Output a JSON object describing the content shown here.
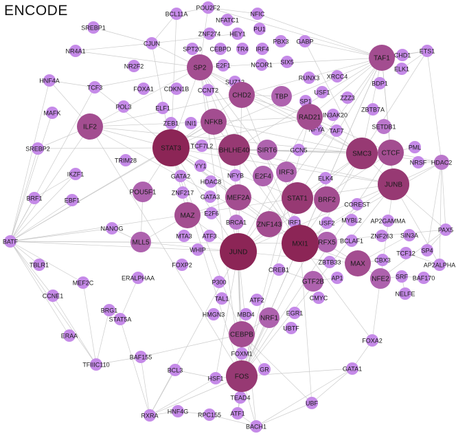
{
  "title": "ENCODE",
  "colors": {
    "edge": "#c2c2c2",
    "node_light": "#c58ae8",
    "node_dark": "#8c2556",
    "label": "#1a1a1a"
  },
  "nodes": [
    {
      "id": "POU2F2",
      "label": "POU2F2",
      "size": 0
    },
    {
      "id": "BCL11A",
      "label": "BCL11A",
      "size": 0
    },
    {
      "id": "NFATC1",
      "label": "NFATC1",
      "size": 0
    },
    {
      "id": "NFIC",
      "label": "NFIC",
      "size": 0
    },
    {
      "id": "SREBP1",
      "label": "SREBP1",
      "size": 0
    },
    {
      "id": "CJUN",
      "label": "CJUN",
      "size": 0
    },
    {
      "id": "ZNF274",
      "label": "ZNF274",
      "size": 0
    },
    {
      "id": "HEY1",
      "label": "HEY1",
      "size": 0
    },
    {
      "id": "PU1",
      "label": "PU1",
      "size": 0
    },
    {
      "id": "PBX3",
      "label": "PBX3",
      "size": 0
    },
    {
      "id": "GABP",
      "label": "GABP",
      "size": 0
    },
    {
      "id": "NR4A1",
      "label": "NR4A1",
      "size": 0
    },
    {
      "id": "SPT20",
      "label": "SPT20",
      "size": 0
    },
    {
      "id": "CEBPD",
      "label": "CEBPD",
      "size": 0
    },
    {
      "id": "TR4",
      "label": "TR4",
      "size": 0
    },
    {
      "id": "IRF4",
      "label": "IRF4",
      "size": 0
    },
    {
      "id": "TAF1",
      "label": "TAF1",
      "size": 3
    },
    {
      "id": "CHD1",
      "label": "CHD1",
      "size": 0
    },
    {
      "id": "ETS1",
      "label": "ETS1",
      "size": 0
    },
    {
      "id": "NR2F2",
      "label": "NR2F2",
      "size": 0
    },
    {
      "id": "SP2",
      "label": "SP2",
      "size": 3
    },
    {
      "id": "E2F1",
      "label": "E2F1",
      "size": 0
    },
    {
      "id": "NCOR1",
      "label": "NCOR1",
      "size": 0
    },
    {
      "id": "SIX5",
      "label": "SIX5",
      "size": 0
    },
    {
      "id": "ELK1",
      "label": "ELK1",
      "size": 0
    },
    {
      "id": "HNF4A",
      "label": "HNF4A",
      "size": 0
    },
    {
      "id": "TCF3",
      "label": "TCF3",
      "size": 0
    },
    {
      "id": "FOXA1",
      "label": "FOXA1",
      "size": 0
    },
    {
      "id": "CDKN1B",
      "label": "CDKN1B",
      "size": 0
    },
    {
      "id": "CCNT2",
      "label": "CCNT2",
      "size": 0
    },
    {
      "id": "SUZ12",
      "label": "SUZ12",
      "size": 0
    },
    {
      "id": "RUNX3",
      "label": "RUNX3",
      "size": 0
    },
    {
      "id": "XRCC4",
      "label": "XRCC4",
      "size": 0
    },
    {
      "id": "BDP1",
      "label": "BDP1",
      "size": 0
    },
    {
      "id": "CHD2",
      "label": "CHD2",
      "size": 3
    },
    {
      "id": "TBP",
      "label": "TBP",
      "size": 2
    },
    {
      "id": "SP1",
      "label": "SP1",
      "size": 0
    },
    {
      "id": "USF1",
      "label": "USF1",
      "size": 0
    },
    {
      "id": "ZZZ3",
      "label": "ZZZ3",
      "size": 0
    },
    {
      "id": "MAFK",
      "label": "MAFK",
      "size": 0
    },
    {
      "id": "POL3",
      "label": "POL3",
      "size": 0
    },
    {
      "id": "ELF1",
      "label": "ELF1",
      "size": 0
    },
    {
      "id": "SIN3AK20",
      "label": "SIN3AK20",
      "size": 0
    },
    {
      "id": "ZBTB7A",
      "label": "ZBTB7A",
      "size": 0
    },
    {
      "id": "ILF2",
      "label": "ILF2",
      "size": 3
    },
    {
      "id": "NFKB",
      "label": "NFKB",
      "size": 3
    },
    {
      "id": "RAD21",
      "label": "RAD21",
      "size": 3
    },
    {
      "id": "NFYA",
      "label": "NFYA",
      "size": 0
    },
    {
      "id": "TAF7",
      "label": "TAF7",
      "size": 0
    },
    {
      "id": "SETDB1",
      "label": "SETDB1",
      "size": 1
    },
    {
      "id": "ZEB1",
      "label": "ZEB1",
      "size": 0
    },
    {
      "id": "INI1",
      "label": "INI1",
      "size": 0
    },
    {
      "id": "SREBP2",
      "label": "SREBP2",
      "size": 0
    },
    {
      "id": "STAT3",
      "label": "STAT3",
      "size": 5
    },
    {
      "id": "TCF7L2",
      "label": "TCF7L2",
      "size": 0
    },
    {
      "id": "BHLHE40",
      "label": "BHLHE40",
      "size": 4
    },
    {
      "id": "SIRT6",
      "label": "SIRT6",
      "size": 2
    },
    {
      "id": "GCN5",
      "label": "GCN5",
      "size": 0
    },
    {
      "id": "SMC3",
      "label": "SMC3",
      "size": 4
    },
    {
      "id": "CTCF",
      "label": "CTCF",
      "size": 3
    },
    {
      "id": "PML",
      "label": "PML",
      "size": 0
    },
    {
      "id": "TRIM28",
      "label": "TRIM28",
      "size": 0
    },
    {
      "id": "NRSF",
      "label": "NRSF",
      "size": 0
    },
    {
      "id": "HDAC2",
      "label": "HDAC2",
      "size": 1
    },
    {
      "id": "IKZF1",
      "label": "IKZF1",
      "size": 0
    },
    {
      "id": "YY1",
      "label": "YY1",
      "size": 0
    },
    {
      "id": "GATA2",
      "label": "GATA2",
      "size": 0
    },
    {
      "id": "NFYB",
      "label": "NFYB",
      "size": 0
    },
    {
      "id": "E2F4",
      "label": "E2F4",
      "size": 2
    },
    {
      "id": "IRF3",
      "label": "IRF3",
      "size": 2
    },
    {
      "id": "ELK4",
      "label": "ELK4",
      "size": 0
    },
    {
      "id": "JUNB",
      "label": "JUNB",
      "size": 4
    },
    {
      "id": "BRF1",
      "label": "BRF1",
      "size": 0
    },
    {
      "id": "POU5F1",
      "label": "POU5F1",
      "size": 2
    },
    {
      "id": "ZNF217",
      "label": "ZNF217",
      "size": 0
    },
    {
      "id": "HDAC8",
      "label": "HDAC8",
      "size": 0
    },
    {
      "id": "MEF2A",
      "label": "MEF2A",
      "size": 3
    },
    {
      "id": "STAT1",
      "label": "STAT1",
      "size": 4
    },
    {
      "id": "BRF2",
      "label": "BRF2",
      "size": 3
    },
    {
      "id": "GATA3",
      "label": "GATA3",
      "size": 0
    },
    {
      "id": "EBF1",
      "label": "EBF1",
      "size": 0
    },
    {
      "id": "COREST",
      "label": "COREST",
      "size": 0
    },
    {
      "id": "MAZ",
      "label": "MAZ",
      "size": 3
    },
    {
      "id": "E2F6",
      "label": "E2F6",
      "size": 0
    },
    {
      "id": "MYBL2",
      "label": "MYBL2",
      "size": 0
    },
    {
      "id": "AP2GAMMA",
      "label": "AP2GAMMA",
      "size": 0
    },
    {
      "id": "BRCA1",
      "label": "BRCA1",
      "size": 1
    },
    {
      "id": "ZNF143",
      "label": "ZNF143",
      "size": 3
    },
    {
      "id": "IRF1",
      "label": "IRF1",
      "size": 0
    },
    {
      "id": "USF2",
      "label": "USF2",
      "size": 0
    },
    {
      "id": "SIN3A",
      "label": "SIN3A",
      "size": 0
    },
    {
      "id": "PAX5",
      "label": "PAX5",
      "size": 0
    },
    {
      "id": "BATF",
      "label": "BATF",
      "size": 0
    },
    {
      "id": "NANOG",
      "label": "NANOG",
      "size": 0
    },
    {
      "id": "MLL5",
      "label": "MLL5",
      "size": 2
    },
    {
      "id": "MTA3",
      "label": "MTA3",
      "size": 0
    },
    {
      "id": "ATF3",
      "label": "ATF3",
      "size": 0
    },
    {
      "id": "MXI1",
      "label": "MXI1",
      "size": 5
    },
    {
      "id": "RFX5",
      "label": "RFX5",
      "size": 2
    },
    {
      "id": "BCLAF1",
      "label": "BCLAF1",
      "size": 0
    },
    {
      "id": "ZNF263",
      "label": "ZNF263",
      "size": 0
    },
    {
      "id": "TCF12",
      "label": "TCF12",
      "size": 0
    },
    {
      "id": "SP4",
      "label": "SP4",
      "size": 0
    },
    {
      "id": "JUND",
      "label": "JUND",
      "size": 5
    },
    {
      "id": "WHIP",
      "label": "WHIP",
      "size": 0
    },
    {
      "id": "CBX3",
      "label": "CBX3",
      "size": 0
    },
    {
      "id": "AP2ALPHA",
      "label": "AP2ALPHA",
      "size": 0
    },
    {
      "id": "TBLR1",
      "label": "TBLR1",
      "size": 0
    },
    {
      "id": "FOXP2",
      "label": "FOXP2",
      "size": 0
    },
    {
      "id": "CREB1",
      "label": "CREB1",
      "size": 0
    },
    {
      "id": "ZBTB33",
      "label": "ZBTB33",
      "size": 0
    },
    {
      "id": "MAX",
      "label": "MAX",
      "size": 3
    },
    {
      "id": "BAF170",
      "label": "BAF170",
      "size": 0
    },
    {
      "id": "MEF2C",
      "label": "MEF2C",
      "size": 0
    },
    {
      "id": "ERALPHAA",
      "label": "ERALPHAA",
      "size": 0
    },
    {
      "id": "P300",
      "label": "P300",
      "size": 0
    },
    {
      "id": "GTF2B",
      "label": "GTF2B",
      "size": 2
    },
    {
      "id": "AP1",
      "label": "AP1",
      "size": 0
    },
    {
      "id": "NFE2",
      "label": "NFE2",
      "size": 2
    },
    {
      "id": "SRF",
      "label": "SRF",
      "size": 0
    },
    {
      "id": "CCNE1",
      "label": "CCNE1",
      "size": 0
    },
    {
      "id": "NELFE",
      "label": "NELFE",
      "size": 0
    },
    {
      "id": "TAL1",
      "label": "TAL1",
      "size": 0
    },
    {
      "id": "BRG1",
      "label": "BRG1",
      "size": 0
    },
    {
      "id": "ATF2",
      "label": "ATF2",
      "size": 0
    },
    {
      "id": "CMYC",
      "label": "CMYC",
      "size": 0
    },
    {
      "id": "HMGN3",
      "label": "HMGN3",
      "size": 0
    },
    {
      "id": "MBD4",
      "label": "MBD4",
      "size": 0
    },
    {
      "id": "NRF1",
      "label": "NRF1",
      "size": 2
    },
    {
      "id": "EGR1",
      "label": "EGR1",
      "size": 0
    },
    {
      "id": "STAT5A",
      "label": "STAT5A",
      "size": 0
    },
    {
      "id": "UBTF",
      "label": "UBTF",
      "size": 0
    },
    {
      "id": "ERAA",
      "label": "ERAA",
      "size": 0
    },
    {
      "id": "CEBPB",
      "label": "CEBPB",
      "size": 3
    },
    {
      "id": "FOXA2",
      "label": "FOXA2",
      "size": 0
    },
    {
      "id": "BAF155",
      "label": "BAF155",
      "size": 0
    },
    {
      "id": "FOXM1",
      "label": "FOXM1",
      "size": 0
    },
    {
      "id": "TFIIIC110",
      "label": "TFIIIC110",
      "size": 0
    },
    {
      "id": "GATA1",
      "label": "GATA1",
      "size": 0
    },
    {
      "id": "BCL3",
      "label": "BCL3",
      "size": 0
    },
    {
      "id": "GR",
      "label": "GR",
      "size": 0
    },
    {
      "id": "HSF1",
      "label": "HSF1",
      "size": 0
    },
    {
      "id": "FOS",
      "label": "FOS",
      "size": 4
    },
    {
      "id": "TEAD4",
      "label": "TEAD4",
      "size": 0
    },
    {
      "id": "UBF",
      "label": "UBF",
      "size": 0
    },
    {
      "id": "HNF4G",
      "label": "HNF4G",
      "size": 0
    },
    {
      "id": "RXRA",
      "label": "RXRA",
      "size": 0
    },
    {
      "id": "RPC155",
      "label": "RPC155",
      "size": 0
    },
    {
      "id": "ATF1",
      "label": "ATF1",
      "size": 0
    },
    {
      "id": "BACH1",
      "label": "BACH1",
      "size": 0
    }
  ],
  "edges": [
    [
      "STAT3",
      "SP2"
    ],
    [
      "STAT3",
      "NFKB"
    ],
    [
      "STAT3",
      "ILF2"
    ],
    [
      "STAT3",
      "BHLHE40"
    ],
    [
      "STAT3",
      "JUND"
    ],
    [
      "STAT3",
      "MXI1"
    ],
    [
      "STAT3",
      "SMC3"
    ],
    [
      "STAT3",
      "STAT1"
    ],
    [
      "STAT3",
      "MAZ"
    ],
    [
      "STAT3",
      "CHD2"
    ],
    [
      "STAT3",
      "RAD21"
    ],
    [
      "STAT3",
      "TAF1"
    ],
    [
      "STAT3",
      "CTCF"
    ],
    [
      "STAT3",
      "JUNB"
    ],
    [
      "STAT3",
      "FOS"
    ],
    [
      "STAT3",
      "MEF2A"
    ],
    [
      "STAT3",
      "POU5F1"
    ],
    [
      "STAT3",
      "BATF"
    ],
    [
      "STAT3",
      "CJUN"
    ],
    [
      "STAT3",
      "BCL11A"
    ],
    [
      "STAT3",
      "CEBPB"
    ],
    [
      "STAT3",
      "MAX"
    ],
    [
      "STAT3",
      "ZNF143"
    ],
    [
      "STAT3",
      "TCF3"
    ],
    [
      "STAT3",
      "SREBP2"
    ],
    [
      "JUND",
      "SMC3"
    ],
    [
      "JUND",
      "JUNB"
    ],
    [
      "JUND",
      "FOS"
    ],
    [
      "JUND",
      "BATF"
    ],
    [
      "JUND",
      "TAF1"
    ],
    [
      "JUND",
      "CTCF"
    ],
    [
      "JUND",
      "CHD2"
    ],
    [
      "JUND",
      "SP2"
    ],
    [
      "JUND",
      "MAX"
    ],
    [
      "JUND",
      "CEBPB"
    ],
    [
      "JUND",
      "RXRA"
    ],
    [
      "JUND",
      "BACH1"
    ],
    [
      "JUND",
      "HSF1"
    ],
    [
      "JUND",
      "MLL5"
    ],
    [
      "JUND",
      "RAD21"
    ],
    [
      "MXI1",
      "SMC3"
    ],
    [
      "MXI1",
      "TAF1"
    ],
    [
      "MXI1",
      "JUNB"
    ],
    [
      "MXI1",
      "FOS"
    ],
    [
      "MXI1",
      "BATF"
    ],
    [
      "MXI1",
      "SP2"
    ],
    [
      "MXI1",
      "NFKB"
    ],
    [
      "MXI1",
      "ILF2"
    ],
    [
      "MXI1",
      "MAX"
    ],
    [
      "MXI1",
      "PAX5"
    ],
    [
      "MXI1",
      "UBF"
    ],
    [
      "MXI1",
      "FOXA2"
    ],
    [
      "MXI1",
      "CHD2"
    ],
    [
      "MXI1",
      "HDAC2"
    ],
    [
      "SMC3",
      "TAF1"
    ],
    [
      "SMC3",
      "CTCF"
    ],
    [
      "SMC3",
      "RAD21"
    ],
    [
      "SMC3",
      "CHD2"
    ],
    [
      "SMC3",
      "SP2"
    ],
    [
      "SMC3",
      "JUNB"
    ],
    [
      "SMC3",
      "ETS1"
    ],
    [
      "SMC3",
      "HDAC2"
    ],
    [
      "SMC3",
      "FOS"
    ],
    [
      "SMC3",
      "BHLHE40"
    ],
    [
      "SMC3",
      "NFKB"
    ],
    [
      "SMC3",
      "ILF2"
    ],
    [
      "SMC3",
      "STAT1"
    ],
    [
      "STAT1",
      "JUNB"
    ],
    [
      "STAT1",
      "TAF1"
    ],
    [
      "STAT1",
      "FOS"
    ],
    [
      "STAT1",
      "SP2"
    ],
    [
      "STAT1",
      "BATF"
    ],
    [
      "BHLHE40",
      "SP2"
    ],
    [
      "BHLHE40",
      "TAF1"
    ],
    [
      "BHLHE40",
      "FOS"
    ],
    [
      "BHLHE40",
      "JUNB"
    ],
    [
      "BHLHE40",
      "CTCF"
    ],
    [
      "SP2",
      "TAF1"
    ],
    [
      "SP2",
      "ILF2"
    ],
    [
      "SP2",
      "FOS"
    ],
    [
      "SP2",
      "CHD2"
    ],
    [
      "SP2",
      "RAD21"
    ],
    [
      "ILF2",
      "NFKB"
    ],
    [
      "ILF2",
      "FOS"
    ],
    [
      "ILF2",
      "BATF"
    ],
    [
      "ILF2",
      "HNF4A"
    ],
    [
      "ILF2",
      "CHD2"
    ],
    [
      "FOS",
      "CEBPB"
    ],
    [
      "FOS",
      "RXRA"
    ],
    [
      "FOS",
      "BACH1"
    ],
    [
      "FOS",
      "GATA1"
    ],
    [
      "FOS",
      "TAF1"
    ],
    [
      "FOS",
      "JUNB"
    ],
    [
      "FOS",
      "CTCF"
    ],
    [
      "FOS",
      "RAD21"
    ],
    [
      "FOS",
      "NRF1"
    ],
    [
      "FOS",
      "ATF1"
    ],
    [
      "JUNB",
      "TAF1"
    ],
    [
      "JUNB",
      "PAX5"
    ],
    [
      "JUNB",
      "HDAC2"
    ],
    [
      "JUNB",
      "AP2ALPHA"
    ],
    [
      "JUNB",
      "CTCF"
    ],
    [
      "TAF1",
      "ETS1"
    ],
    [
      "TAF1",
      "CHD1"
    ],
    [
      "TAF1",
      "CTCF"
    ],
    [
      "TAF1",
      "RAD21"
    ],
    [
      "TAF1",
      "CHD2"
    ],
    [
      "CTCF",
      "RAD21"
    ],
    [
      "CTCF",
      "HDAC2"
    ],
    [
      "CTCF",
      "PML"
    ],
    [
      "BATF",
      "SREBP2"
    ],
    [
      "BATF",
      "TBLR1"
    ],
    [
      "BATF",
      "BRF1"
    ],
    [
      "BATF",
      "NANOG"
    ],
    [
      "BATF",
      "CCNE1"
    ],
    [
      "BATF",
      "TFIIIC110"
    ],
    [
      "BATF",
      "ERAA"
    ],
    [
      "BATF",
      "MAFK"
    ],
    [
      "BATF",
      "HNF4A"
    ],
    [
      "BATF",
      "IKZF1"
    ],
    [
      "BATF",
      "EBF1"
    ],
    [
      "BATF",
      "MEF2C"
    ],
    [
      "BATF",
      "MLL5"
    ],
    [
      "BATF",
      "TCF3"
    ],
    [
      "BATF",
      "NFKB"
    ],
    [
      "HDAC2",
      "PAX5"
    ],
    [
      "HDAC2",
      "AP2ALPHA"
    ],
    [
      "HDAC2",
      "ETS1"
    ],
    [
      "HDAC2",
      "SP4"
    ],
    [
      "HDAC2",
      "NRSF"
    ],
    [
      "CHD2",
      "RAD21"
    ],
    [
      "CHD2",
      "TBP"
    ],
    [
      "NFKB",
      "RAD21"
    ],
    [
      "MAZ",
      "MEF2A"
    ],
    [
      "MAZ",
      "JUND"
    ],
    [
      "CEBPB",
      "NRF1"
    ],
    [
      "CEBPB",
      "GR"
    ],
    [
      "CEBPB",
      "TEAD4"
    ],
    [
      "CEBPB",
      "UBF"
    ],
    [
      "CEBPB",
      "BAF155"
    ],
    [
      "RXRA",
      "HNF4G"
    ],
    [
      "RXRA",
      "BCL3"
    ],
    [
      "RXRA",
      "HSF1"
    ],
    [
      "RXRA",
      "BAF155"
    ],
    [
      "RXRA",
      "STAT5A"
    ],
    [
      "BACH1",
      "UBF"
    ],
    [
      "BACH1",
      "RPC155"
    ],
    [
      "BACH1",
      "ATF1"
    ],
    [
      "BACH1",
      "GATA1"
    ],
    [
      "TFIIIC110",
      "BAF155"
    ],
    [
      "TFIIIC110",
      "CCNE1"
    ],
    [
      "TFIIIC110",
      "BRG1"
    ],
    [
      "TFIIIC110",
      "MEF2C"
    ],
    [
      "CJUN",
      "BCL11A"
    ],
    [
      "CJUN",
      "SREBP1"
    ],
    [
      "CJUN",
      "NR4A1"
    ],
    [
      "CJUN",
      "HEY1"
    ],
    [
      "CJUN",
      "SP2"
    ],
    [
      "POU2F2",
      "BCL11A"
    ],
    [
      "POU2F2",
      "NFIC"
    ],
    [
      "POU2F2",
      "SP2"
    ],
    [
      "POU2F2",
      "TAF1"
    ],
    [
      "NFIC",
      "TAF1"
    ],
    [
      "GABP",
      "TAF1"
    ],
    [
      "GABP",
      "SMC3"
    ],
    [
      "ETS1",
      "CHD1"
    ],
    [
      "ETS1",
      "ELK1"
    ],
    [
      "NFE2",
      "MAX"
    ],
    [
      "NFE2",
      "SRF"
    ],
    [
      "NFE2",
      "JUNB"
    ],
    [
      "MAX",
      "SIN3A"
    ],
    [
      "MAX",
      "CBX3"
    ],
    [
      "GTF2B",
      "AP1"
    ],
    [
      "GTF2B",
      "CREB1"
    ],
    [
      "FOXA2",
      "NFE2"
    ],
    [
      "GATA1",
      "FOXA2"
    ],
    [
      "MLL5",
      "NANOG"
    ],
    [
      "MLL5",
      "POU5F1"
    ],
    [
      "MLL5",
      "MAZ"
    ],
    [
      "SREBP2",
      "ILF2"
    ],
    [
      "TCF3",
      "SP2"
    ],
    [
      "HNF4A",
      "TCF3"
    ],
    [
      "NR4A1",
      "SP2"
    ],
    [
      "BRF1",
      "IKZF1"
    ],
    [
      "STAT5A",
      "ERALPHAA"
    ],
    [
      "STAT5A",
      "BRG1"
    ],
    [
      "BCL3",
      "HSF1"
    ],
    [
      "HSF1",
      "FOS"
    ],
    [
      "PAX5",
      "SP4"
    ],
    [
      "PAX5",
      "NFE2"
    ],
    [
      "AP2ALPHA",
      "TCF12"
    ],
    [
      "BAF170",
      "SRF"
    ],
    [
      "NELFE",
      "SRF"
    ],
    [
      "UBF",
      "GATA1"
    ],
    [
      "RPC155",
      "HNF4G"
    ],
    [
      "ATF1",
      "TEAD4"
    ],
    [
      "FOXM1",
      "CEBPB"
    ]
  ]
}
